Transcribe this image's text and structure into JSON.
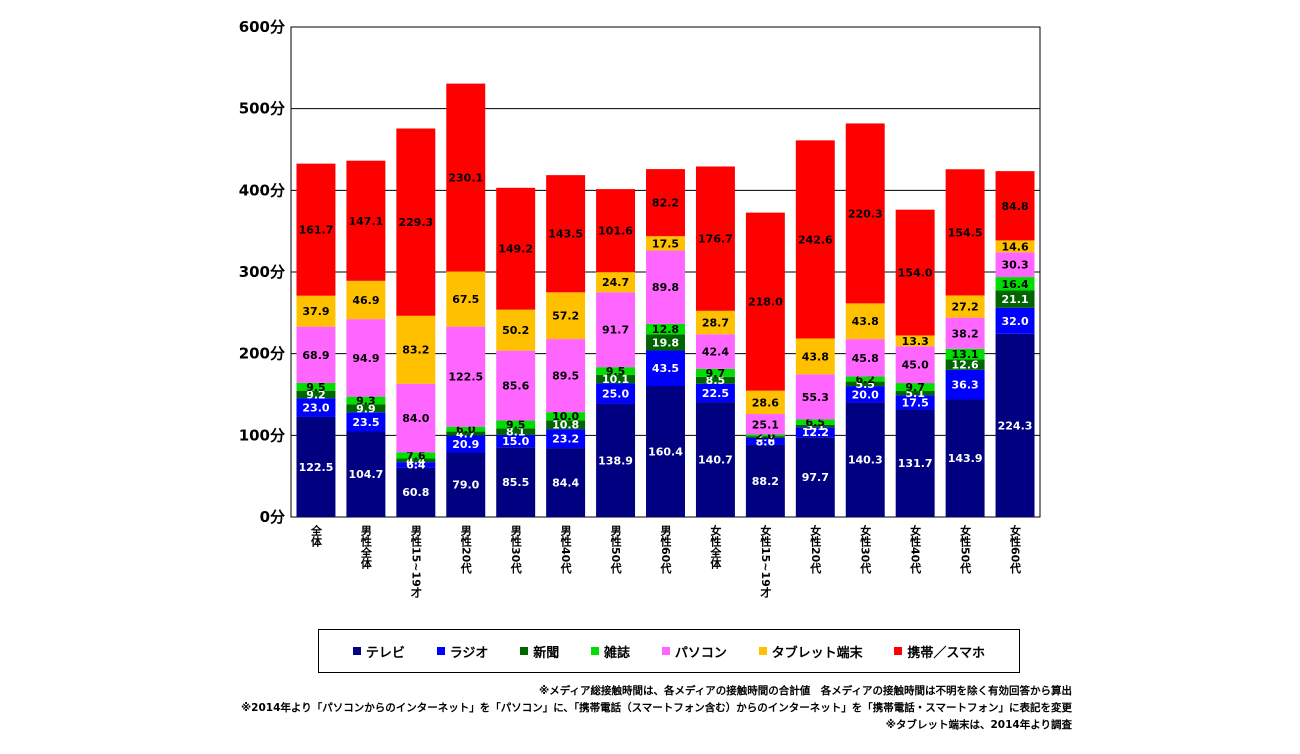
{
  "chart_data": {
    "type": "bar",
    "stacked": true,
    "categories": [
      "全体",
      "男性全体",
      "男性15~19才",
      "男性20代",
      "男性30代",
      "男性40代",
      "男性50代",
      "男性60代",
      "女性全体",
      "女性15~19才",
      "女性20代",
      "女性30代",
      "女性40代",
      "女性50代",
      "女性60代"
    ],
    "series": [
      {
        "name": "テレビ",
        "color": "#000080",
        "label_color": "#ffffff",
        "values": [
          122.5,
          104.7,
          60.8,
          79.0,
          85.5,
          84.4,
          138.9,
          160.4,
          140.7,
          88.2,
          97.7,
          140.3,
          131.7,
          143.9,
          224.3
        ]
      },
      {
        "name": "ラジオ",
        "color": "#0000ff",
        "label_color": "#ffffff",
        "values": [
          23.0,
          23.5,
          6.4,
          20.9,
          15.0,
          23.2,
          25.0,
          43.5,
          22.5,
          8.6,
          12.2,
          20.0,
          17.5,
          36.3,
          32.0
        ]
      },
      {
        "name": "新聞",
        "color": "#006400",
        "label_color": "#ffffff",
        "values": [
          9.2,
          9.9,
          4.4,
          4.7,
          8.1,
          10.8,
          10.1,
          19.8,
          8.5,
          2.2,
          3.1,
          5.5,
          5.1,
          12.6,
          21.1
        ]
      },
      {
        "name": "雑誌",
        "color": "#00dd00",
        "label_color": "#000000",
        "values": [
          9.5,
          9.3,
          7.6,
          6.0,
          9.5,
          10.0,
          9.5,
          12.8,
          9.7,
          2.0,
          6.5,
          6.2,
          9.7,
          13.1,
          16.4
        ]
      },
      {
        "name": "パソコン",
        "color": "#ff66ff",
        "label_color": "#000000",
        "values": [
          68.9,
          94.9,
          84.0,
          122.5,
          85.6,
          89.5,
          91.7,
          89.8,
          42.4,
          25.1,
          55.3,
          45.8,
          45.0,
          38.2,
          30.3
        ]
      },
      {
        "name": "タブレット端末",
        "color": "#ffc000",
        "label_color": "#000000",
        "values": [
          37.9,
          46.9,
          83.2,
          67.5,
          50.2,
          57.2,
          24.7,
          17.5,
          28.7,
          28.6,
          43.8,
          43.8,
          13.3,
          27.2,
          14.6
        ]
      },
      {
        "name": "携帯／スマホ",
        "color": "#ff0000",
        "label_color": "#000000",
        "values": [
          161.7,
          147.1,
          229.3,
          230.1,
          149.2,
          143.5,
          101.6,
          82.2,
          176.7,
          218.0,
          242.6,
          220.3,
          154.0,
          154.5,
          84.8
        ]
      }
    ],
    "y_ticks": [
      "0分",
      "100分",
      "200分",
      "300分",
      "400分",
      "500分",
      "600分"
    ],
    "ylim": [
      0,
      600
    ],
    "grid": true,
    "legend_position": "bottom"
  },
  "notes": [
    "※メディア総接触時間は、各メディアの接触時間の合計値　各メディアの接触時間は不明を除く有効回答から算出",
    "※2014年より「パソコンからのインターネット」を「パソコン」に、「携帯電話（スマートフォン含む）からのインターネット」を「携帯電話・スマートフォン」に表記を変更",
    "※タブレット端末は、2014年より調査"
  ]
}
